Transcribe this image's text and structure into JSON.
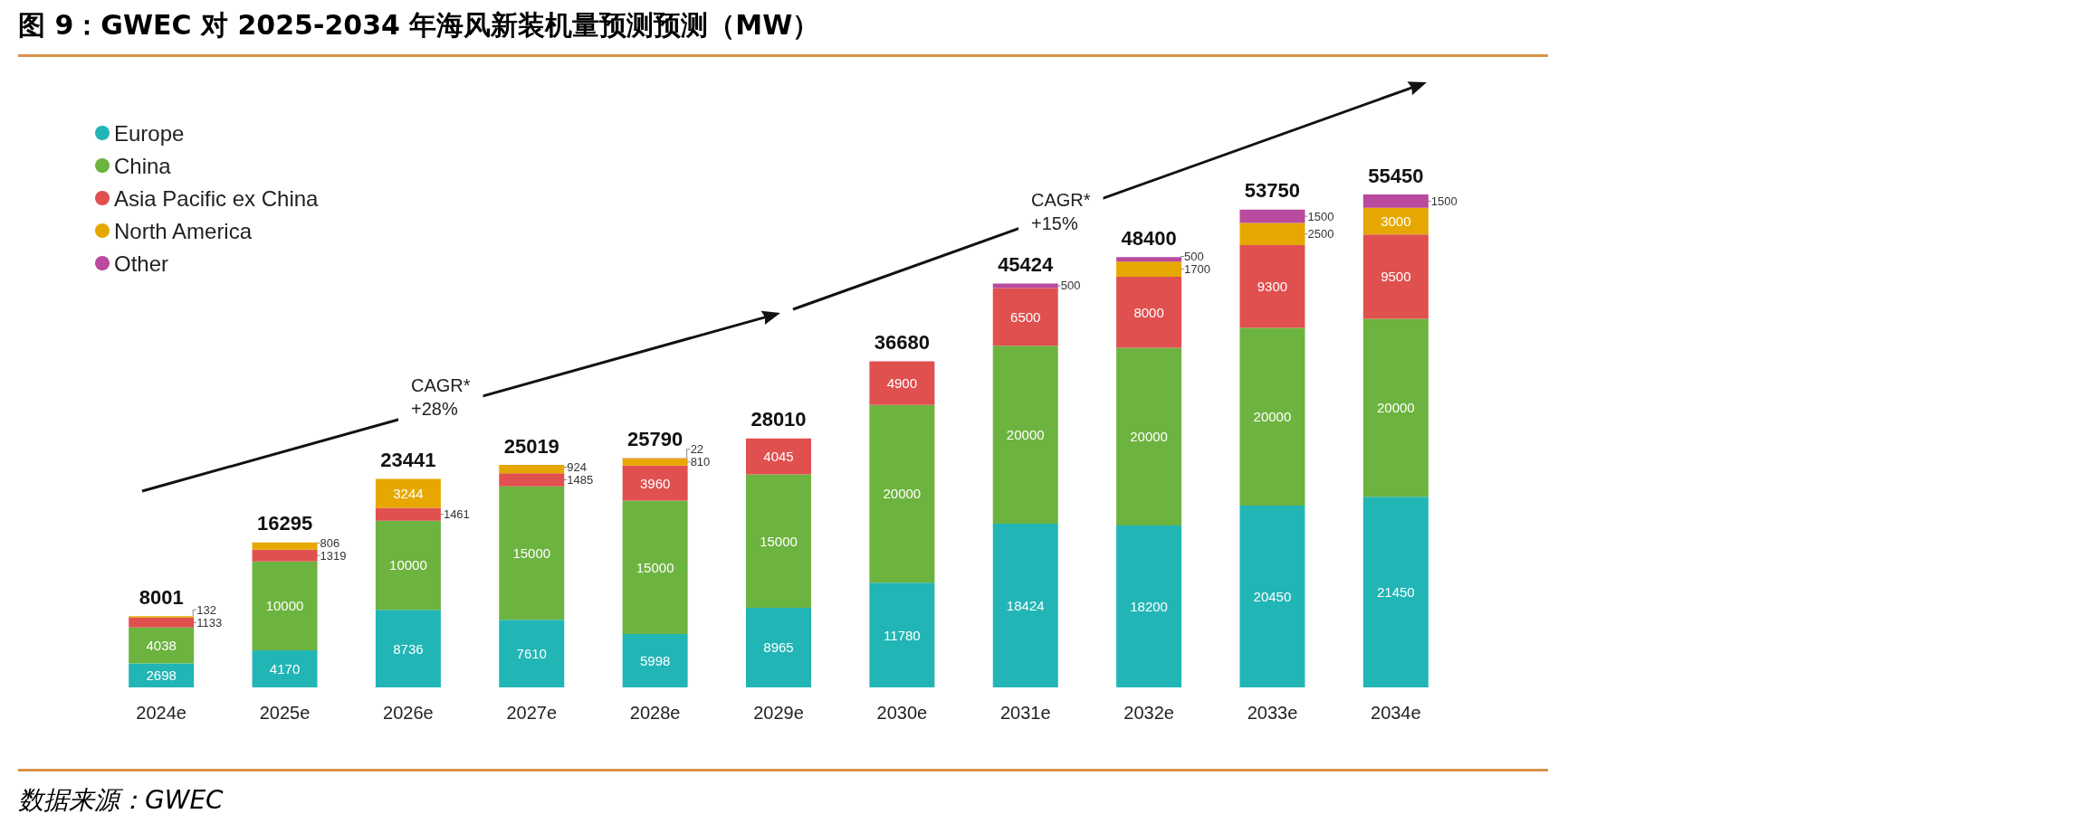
{
  "chart_data": {
    "type": "bar",
    "title": "图 9：GWEC 对 2025-2034 年海风新装机量预测预测（MW）",
    "stacked": true,
    "data_labels": true,
    "legend": "top left",
    "categories": [
      "2024e",
      "2025e",
      "2026e",
      "2027e",
      "2028e",
      "2029e",
      "2030e",
      "2031e",
      "2032e",
      "2033e",
      "2034e"
    ],
    "series": [
      {
        "name": "Europe",
        "color": "#22b5b5",
        "values": [
          2698,
          4170,
          8736,
          7610,
          5998,
          8965,
          11780,
          18424,
          18200,
          20450,
          21450
        ]
      },
      {
        "name": "China",
        "color": "#6db33f",
        "values": [
          4038,
          10000,
          10000,
          15000,
          15000,
          15000,
          20000,
          20000,
          20000,
          20000,
          20000
        ]
      },
      {
        "name": "Asia Pacific ex China",
        "color": "#e0504f",
        "values": [
          1133,
          1319,
          1461,
          1485,
          3960,
          4045,
          4900,
          6500,
          8000,
          9300,
          9500
        ]
      },
      {
        "name": "North America",
        "color": "#e6a800",
        "values": [
          132,
          806,
          3244,
          924,
          810,
          null,
          null,
          null,
          1700,
          2500,
          3000
        ]
      },
      {
        "name": "Other",
        "color": "#b94a9d",
        "values": [
          null,
          null,
          null,
          null,
          22,
          null,
          null,
          500,
          500,
          1500,
          1500
        ]
      }
    ],
    "totals": [
      "8001",
      "16295",
      "23441",
      "25019",
      "25790",
      "28010",
      "36680",
      "45424",
      "48400",
      "53750",
      "55450"
    ],
    "annotations": [
      "CAGR*\n+28%",
      "CAGR*\n+15%",
      "数据来源：GWEC"
    ]
  }
}
